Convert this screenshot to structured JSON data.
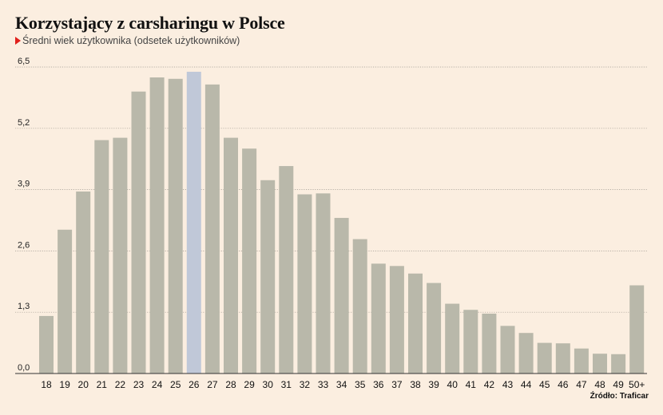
{
  "title": "Korzystający z carsharingu w Polsce",
  "subtitle": "Średni wiek użytkownika (odsetek użytkowników)",
  "source": "Źródło: Traficar",
  "colors": {
    "bar": "#b9b8aa",
    "highlight": "#c0c8d8",
    "grid": "#a09a92",
    "background": "#fbeee0"
  },
  "chart_data": {
    "type": "bar",
    "title": "Korzystający z carsharingu w Polsce",
    "subtitle": "Średni wiek użytkownika (odsetek użytkowników)",
    "categories": [
      "18",
      "19",
      "20",
      "21",
      "22",
      "23",
      "24",
      "25",
      "26",
      "27",
      "28",
      "29",
      "30",
      "31",
      "32",
      "33",
      "34",
      "35",
      "36",
      "37",
      "38",
      "39",
      "40",
      "41",
      "42",
      "43",
      "44",
      "45",
      "46",
      "47",
      "48",
      "49",
      "50+"
    ],
    "values": [
      1.22,
      3.05,
      3.86,
      4.95,
      5.0,
      5.98,
      6.28,
      6.25,
      6.4,
      6.13,
      5.0,
      4.77,
      4.1,
      4.4,
      3.8,
      3.82,
      3.3,
      2.85,
      2.33,
      2.28,
      2.12,
      1.92,
      1.48,
      1.35,
      1.27,
      1.01,
      0.86,
      0.65,
      0.64,
      0.53,
      0.42,
      0.41,
      1.87
    ],
    "highlight_category": "26",
    "yticks": [
      "0,0",
      "1,3",
      "2,6",
      "3,9",
      "5,2",
      "6,5"
    ],
    "ylim": [
      0,
      6.5
    ],
    "grid": true,
    "legend": "none"
  }
}
